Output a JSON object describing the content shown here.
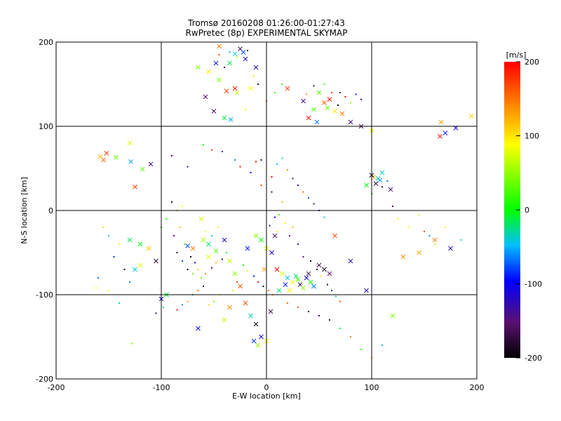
{
  "chart_data": {
    "type": "scatter",
    "title": "Tromsø 20160208 01:26:00-01:27:43",
    "subtitle": "RwPretec (8p) EXPERIMENTAL SKYMAP",
    "xlabel": "E-W location [km]",
    "ylabel": "N-S location [km]",
    "xlim": [
      -200,
      200
    ],
    "ylim": [
      -200,
      200
    ],
    "xticks": [
      -200,
      -100,
      0,
      100,
      200
    ],
    "yticks": [
      -200,
      -100,
      0,
      100,
      200
    ],
    "grid": true,
    "colorbar": {
      "label": "[m/s]",
      "range": [
        -200,
        200
      ],
      "ticks": [
        200,
        100,
        0,
        -100,
        -200
      ],
      "colors": [
        "#000000",
        "#5a1070",
        "#0000ff",
        "#00bfff",
        "#00ff00",
        "#ffff00",
        "#ff8000",
        "#ff0000"
      ]
    },
    "series": [
      {
        "marker": "cross",
        "points": [
          [
            -158,
            64
          ],
          [
            -155,
            60
          ],
          [
            -152,
            68
          ],
          [
            -143,
            63
          ],
          [
            -129,
            58
          ],
          [
            -130,
            80
          ],
          [
            -125,
            28
          ],
          [
            -118,
            49
          ],
          [
            -110,
            55
          ],
          [
            -30,
            186
          ],
          [
            -25,
            192
          ],
          [
            -20,
            180
          ],
          [
            -35,
            175
          ],
          [
            -15,
            145
          ],
          [
            -10,
            170
          ],
          [
            -40,
            110
          ],
          [
            -30,
            145
          ],
          [
            -28,
            140
          ],
          [
            -38,
            142
          ],
          [
            -65,
            170
          ],
          [
            -55,
            165
          ],
          [
            -45,
            155
          ],
          [
            -50,
            118
          ],
          [
            -58,
            135
          ],
          [
            -34,
            108
          ],
          [
            -45,
            195
          ],
          [
            -48,
            175
          ],
          [
            -22,
            188
          ],
          [
            20,
            145
          ],
          [
            35,
            130
          ],
          [
            45,
            120
          ],
          [
            50,
            140
          ],
          [
            55,
            128
          ],
          [
            60,
            132
          ],
          [
            65,
            118
          ],
          [
            40,
            110
          ],
          [
            58,
            122
          ],
          [
            48,
            105
          ],
          [
            72,
            115
          ],
          [
            80,
            105
          ],
          [
            90,
            100
          ],
          [
            100,
            95
          ],
          [
            102,
            40
          ],
          [
            106,
            38
          ],
          [
            110,
            45
          ],
          [
            95,
            30
          ],
          [
            104,
            32
          ],
          [
            108,
            36
          ],
          [
            100,
            42
          ],
          [
            118,
            25
          ],
          [
            166,
            105
          ],
          [
            165,
            88
          ],
          [
            180,
            98
          ],
          [
            195,
            112
          ],
          [
            170,
            92
          ],
          [
            -62,
            -10
          ],
          [
            -60,
            -35
          ],
          [
            -55,
            -40
          ],
          [
            -70,
            -45
          ],
          [
            -48,
            -48
          ],
          [
            -75,
            -42
          ],
          [
            -55,
            -55
          ],
          [
            -35,
            -60
          ],
          [
            -10,
            -30
          ],
          [
            -5,
            -35
          ],
          [
            0,
            -45
          ],
          [
            5,
            -50
          ],
          [
            10,
            -70
          ],
          [
            15,
            -75
          ],
          [
            20,
            -80
          ],
          [
            25,
            -85
          ],
          [
            28,
            -78
          ],
          [
            30,
            -82
          ],
          [
            32,
            -88
          ],
          [
            35,
            -92
          ],
          [
            38,
            -80
          ],
          [
            40,
            -75
          ],
          [
            42,
            -85
          ],
          [
            45,
            -90
          ],
          [
            22,
            -95
          ],
          [
            18,
            -88
          ],
          [
            12,
            -95
          ],
          [
            -30,
            -75
          ],
          [
            -25,
            -90
          ],
          [
            -20,
            -110
          ],
          [
            -15,
            -125
          ],
          [
            -10,
            -135
          ],
          [
            -5,
            -150
          ],
          [
            0,
            -155
          ],
          [
            -12,
            -155
          ],
          [
            -35,
            -115
          ],
          [
            -40,
            -130
          ],
          [
            -65,
            -140
          ],
          [
            -95,
            -100
          ],
          [
            -100,
            -105
          ],
          [
            -120,
            -65
          ],
          [
            -125,
            -70
          ],
          [
            -130,
            -35
          ],
          [
            -120,
            -40
          ],
          [
            -112,
            -45
          ],
          [
            -105,
            -60
          ],
          [
            65,
            -30
          ],
          [
            80,
            -60
          ],
          [
            95,
            -95
          ],
          [
            120,
            -125
          ],
          [
            130,
            -55
          ],
          [
            145,
            -50
          ],
          [
            160,
            -35
          ],
          [
            175,
            -45
          ],
          [
            50,
            -65
          ],
          [
            55,
            -70
          ],
          [
            60,
            -75
          ],
          [
            -18,
            -45
          ],
          [
            -40,
            -35
          ],
          [
            8,
            -30
          ],
          [
            -2,
            -70
          ],
          [
            4,
            -120
          ],
          [
            -8,
            -160
          ]
        ]
      },
      {
        "marker": "dot",
        "points": [
          [
            -162,
            -92
          ],
          [
            -128,
            -158
          ],
          [
            -105,
            -122
          ],
          [
            -98,
            -115
          ],
          [
            -88,
            -30
          ],
          [
            -85,
            0
          ],
          [
            -80,
            5
          ],
          [
            -82,
            -20
          ],
          [
            -78,
            -40
          ],
          [
            -72,
            -55
          ],
          [
            -68,
            -62
          ],
          [
            -65,
            -70
          ],
          [
            -90,
            65
          ],
          [
            -75,
            52
          ],
          [
            -60,
            78
          ],
          [
            -52,
            72
          ],
          [
            -42,
            70
          ],
          [
            -30,
            60
          ],
          [
            -25,
            52
          ],
          [
            -15,
            45
          ],
          [
            -10,
            58
          ],
          [
            -5,
            30
          ],
          [
            5,
            22
          ],
          [
            15,
            10
          ],
          [
            12,
            -5
          ],
          [
            18,
            -15
          ],
          [
            25,
            -20
          ],
          [
            8,
            -8
          ],
          [
            3,
            -18
          ],
          [
            10,
            -25
          ],
          [
            22,
            -30
          ],
          [
            30,
            -40
          ],
          [
            35,
            -55
          ],
          [
            42,
            -60
          ],
          [
            48,
            -70
          ],
          [
            52,
            -78
          ],
          [
            58,
            -88
          ],
          [
            62,
            -95
          ],
          [
            66,
            -102
          ],
          [
            70,
            -108
          ],
          [
            -22,
            -65
          ],
          [
            -18,
            -72
          ],
          [
            -12,
            -78
          ],
          [
            -8,
            -85
          ],
          [
            -3,
            -90
          ],
          [
            2,
            -95
          ],
          [
            6,
            -100
          ],
          [
            -28,
            -85
          ],
          [
            -32,
            -95
          ],
          [
            -45,
            -100
          ],
          [
            -50,
            -108
          ],
          [
            -55,
            -112
          ],
          [
            -60,
            -90
          ],
          [
            -65,
            -95
          ],
          [
            -70,
            -100
          ],
          [
            -75,
            -108
          ],
          [
            -80,
            -112
          ],
          [
            -85,
            -118
          ],
          [
            -58,
            -75
          ],
          [
            -52,
            -68
          ],
          [
            -48,
            -62
          ],
          [
            -42,
            -58
          ],
          [
            -38,
            -50
          ],
          [
            -35,
            188
          ],
          [
            -28,
            182
          ],
          [
            -18,
            190
          ],
          [
            -12,
            160
          ],
          [
            -8,
            150
          ],
          [
            0,
            130
          ],
          [
            8,
            140
          ],
          [
            15,
            150
          ],
          [
            -45,
            185
          ],
          [
            -40,
            170
          ],
          [
            -20,
            120
          ],
          [
            70,
            140
          ],
          [
            75,
            135
          ],
          [
            80,
            128
          ],
          [
            85,
            138
          ],
          [
            90,
            132
          ],
          [
            68,
            125
          ],
          [
            62,
            140
          ],
          [
            55,
            150
          ],
          [
            45,
            148
          ],
          [
            38,
            138
          ],
          [
            100,
            20
          ],
          [
            110,
            28
          ],
          [
            115,
            35
          ],
          [
            120,
            5
          ],
          [
            125,
            -10
          ],
          [
            135,
            -20
          ],
          [
            145,
            -5
          ],
          [
            150,
            -25
          ],
          [
            155,
            -30
          ],
          [
            160,
            -40
          ],
          [
            170,
            -20
          ],
          [
            185,
            -35
          ],
          [
            -140,
            -40
          ],
          [
            -150,
            -30
          ],
          [
            -155,
            -20
          ],
          [
            -145,
            -55
          ],
          [
            -135,
            -70
          ],
          [
            -130,
            -85
          ],
          [
            -140,
            -110
          ],
          [
            -150,
            -95
          ],
          [
            -160,
            -80
          ],
          [
            20,
            -110
          ],
          [
            30,
            -115
          ],
          [
            40,
            -120
          ],
          [
            50,
            -125
          ],
          [
            60,
            -130
          ],
          [
            70,
            -140
          ],
          [
            80,
            -150
          ],
          [
            90,
            -165
          ],
          [
            100,
            -175
          ],
          [
            110,
            -160
          ],
          [
            -100,
            -20
          ],
          [
            -95,
            -10
          ],
          [
            -90,
            10
          ],
          [
            -85,
            -50
          ],
          [
            -80,
            -60
          ],
          [
            -75,
            -70
          ],
          [
            -70,
            -75
          ],
          [
            -62,
            -80
          ],
          [
            -58,
            -25
          ],
          [
            -52,
            -30
          ],
          [
            -46,
            -20
          ],
          [
            5,
            40
          ],
          [
            0,
            50
          ],
          [
            -5,
            60
          ],
          [
            10,
            55
          ],
          [
            15,
            62
          ],
          [
            20,
            48
          ],
          [
            25,
            38
          ],
          [
            30,
            30
          ],
          [
            35,
            22
          ],
          [
            40,
            15
          ],
          [
            45,
            8
          ],
          [
            50,
            0
          ],
          [
            55,
            -8
          ]
        ]
      }
    ]
  }
}
